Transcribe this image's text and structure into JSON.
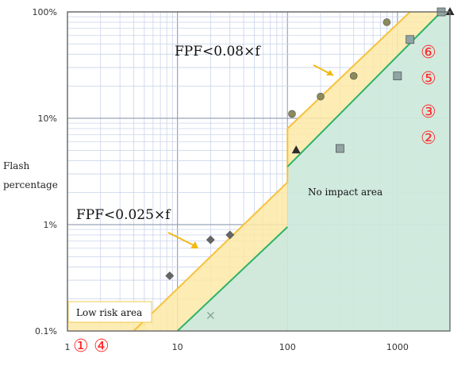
{
  "chart_data": {
    "type": "scatter",
    "x_axis": {
      "scale": "log",
      "range": [
        1,
        3000
      ],
      "tick_labels": [
        "1",
        "10",
        "100",
        "1000"
      ],
      "tick_values": [
        1,
        10,
        100,
        1000
      ]
    },
    "y_axis": {
      "label_lines": [
        "Flash",
        "percentage"
      ],
      "scale": "log",
      "range": [
        0.1,
        100
      ],
      "tick_labels": [
        "0.1%",
        "1%",
        "10%",
        "100%"
      ],
      "tick_values": [
        0.1,
        1,
        10,
        100
      ]
    },
    "grid": true,
    "regions": [
      {
        "name": "Low risk area",
        "color": "#fde9a6"
      },
      {
        "name": "No impact area",
        "color": "#cfe9dc"
      }
    ],
    "limit_lines": [
      {
        "label": "FPF<0.08×f",
        "color": "#f6c23e",
        "x_range": [
          100,
          1300
        ],
        "y_range": [
          8,
          100
        ]
      },
      {
        "label": "FPF<0.025×f",
        "color": "#f6c23e",
        "x_range": [
          4,
          100
        ],
        "y_range": [
          0.1,
          2.5
        ]
      },
      {
        "label": "",
        "color": "#2db36a",
        "x_range": [
          10,
          2500
        ],
        "y_range": [
          0.1,
          100
        ]
      }
    ],
    "series": [
      {
        "marker": "diamond",
        "color": "#666666",
        "points": [
          [
            8.5,
            0.33
          ],
          [
            20,
            0.72
          ],
          [
            30,
            0.8
          ]
        ]
      },
      {
        "marker": "circle",
        "color": "#8a8a5a",
        "points": [
          [
            110,
            11
          ],
          [
            200,
            16
          ],
          [
            400,
            25
          ],
          [
            800,
            80
          ]
        ]
      },
      {
        "marker": "square",
        "color": "#8fa5a5",
        "points": [
          [
            300,
            5.2
          ],
          [
            1000,
            25
          ],
          [
            1300,
            55
          ],
          [
            2500,
            100
          ]
        ]
      },
      {
        "marker": "triangle",
        "color": "#2b2b2b",
        "points": [
          [
            120,
            5
          ],
          [
            3000,
            100
          ]
        ]
      },
      {
        "marker": "x",
        "color": "#7a9b8e",
        "points": [
          [
            20,
            0.14
          ]
        ]
      }
    ],
    "annotations": [
      {
        "text": "FPF<0.08×f",
        "color": "#f2b915"
      },
      {
        "text": "FPF<0.025×f",
        "color": "#f2b915"
      },
      {
        "text": "No impact area",
        "color": "#111111"
      },
      {
        "text": "Low risk area",
        "color": "#111111"
      }
    ],
    "circled_numbers": [
      "①",
      "④",
      "⑥",
      "⑤",
      "③",
      "②"
    ],
    "circled_color": "#ff2a2a"
  }
}
